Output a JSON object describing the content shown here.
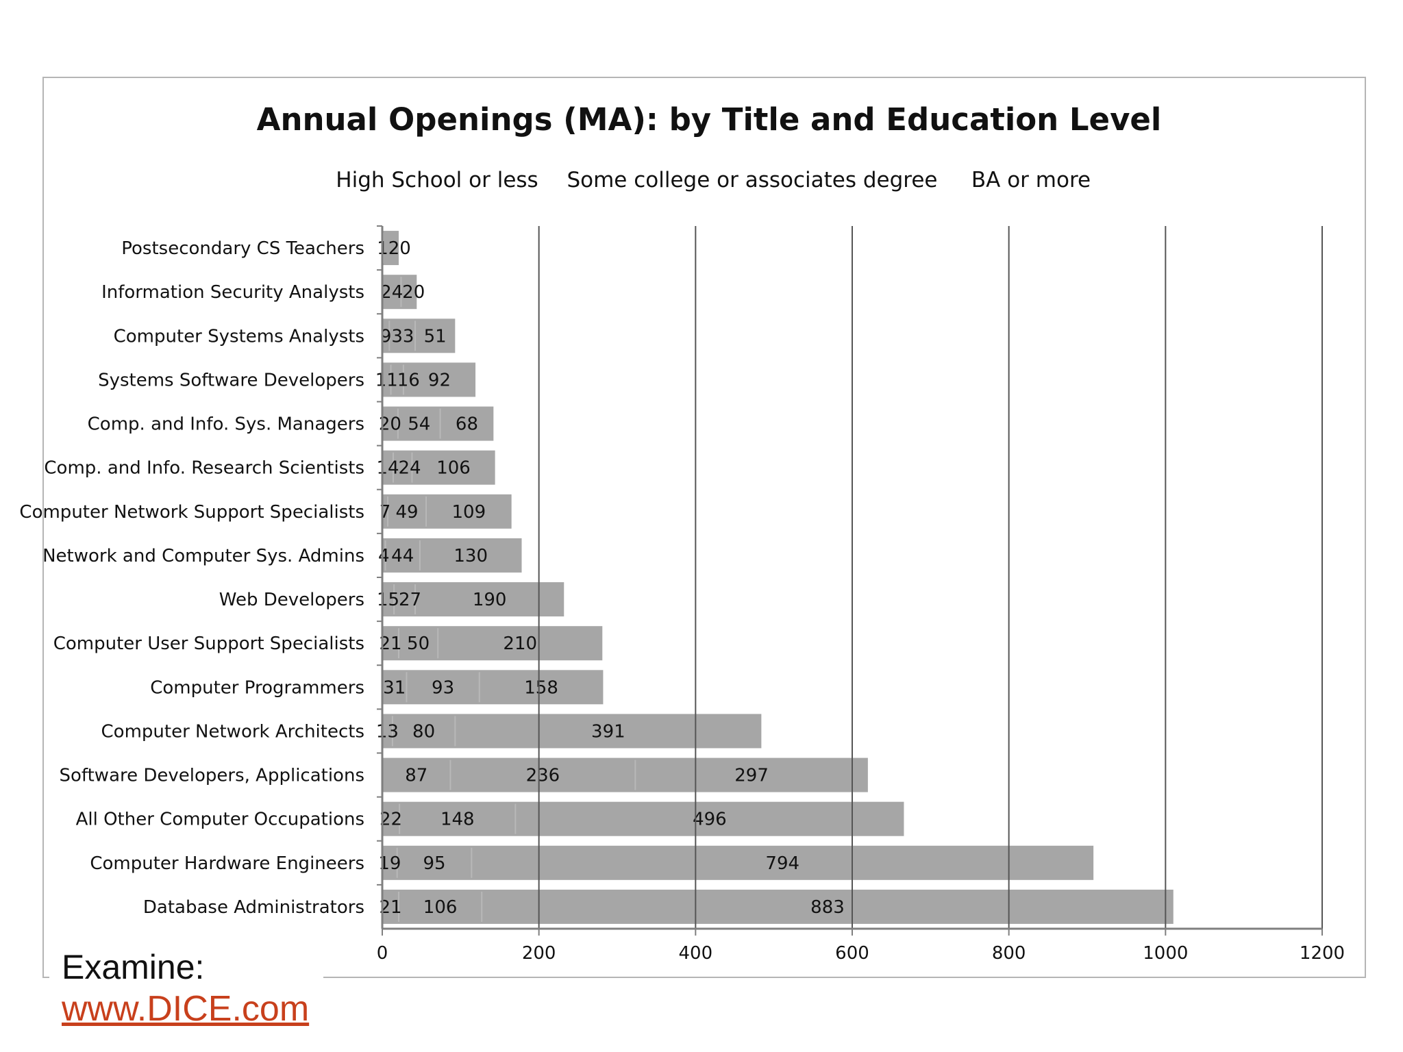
{
  "chart_data": {
    "type": "bar",
    "orientation": "horizontal",
    "stacked": true,
    "title": "Annual Openings (MA): by Title and Education Level",
    "legend_position": "top",
    "series_names": [
      "High School or less",
      "Some college or associates degree",
      "BA or more"
    ],
    "xlim": [
      0,
      1200
    ],
    "xticks": [
      "0",
      "200",
      "400",
      "600",
      "800",
      "1000",
      "1200"
    ],
    "xtick_values": [
      0,
      200,
      400,
      600,
      800,
      1000,
      1200
    ],
    "grid": true,
    "bars": [
      {
        "label": "Postsecondary CS Teachers",
        "values": [
          1,
          20
        ],
        "labels": [
          "1",
          "20"
        ]
      },
      {
        "label": "Information Security Analysts",
        "values": [
          24,
          20
        ],
        "labels": [
          "24",
          "20"
        ]
      },
      {
        "label": "Computer Systems Analysts",
        "values": [
          9,
          33,
          51
        ],
        "labels": [
          "9",
          "33",
          "51"
        ]
      },
      {
        "label": "Systems Software Developers",
        "values": [
          11,
          16,
          92
        ],
        "labels": [
          "11",
          "16",
          "92"
        ]
      },
      {
        "label": "Comp. and Info. Sys. Managers",
        "values": [
          20,
          54,
          68
        ],
        "labels": [
          "20",
          "54",
          "68"
        ]
      },
      {
        "label": "Comp. and Info. Research Scientists",
        "values": [
          14,
          24,
          106
        ],
        "labels": [
          "14",
          "24",
          "106"
        ]
      },
      {
        "label": "Computer Network Support Specialists",
        "values": [
          7,
          49,
          109
        ],
        "labels": [
          "7",
          "49",
          "109"
        ]
      },
      {
        "label": "Network and Computer Sys. Admins",
        "values": [
          4,
          44,
          130
        ],
        "labels": [
          "4",
          "44",
          "130"
        ]
      },
      {
        "label": "Web Developers",
        "values": [
          15,
          27,
          190
        ],
        "labels": [
          "15",
          "27",
          "190"
        ]
      },
      {
        "label": "Computer User Support Specialists",
        "values": [
          21,
          50,
          210
        ],
        "labels": [
          "21",
          "50",
          "210"
        ]
      },
      {
        "label": "Computer Programmers",
        "values": [
          31,
          93,
          158
        ],
        "labels": [
          "31",
          "93",
          "158"
        ]
      },
      {
        "label": "Computer Network Architects",
        "values": [
          13,
          80,
          391
        ],
        "labels": [
          "13",
          "80",
          "391"
        ]
      },
      {
        "label": "Software Developers, Applications",
        "values": [
          87,
          236,
          297
        ],
        "labels": [
          "87",
          "236",
          "297"
        ]
      },
      {
        "label": "All Other Computer Occupations",
        "values": [
          22,
          148,
          496
        ],
        "labels": [
          "22",
          "148",
          "496"
        ]
      },
      {
        "label": "Computer Hardware Engineers",
        "values": [
          19,
          95,
          794
        ],
        "labels": [
          "19",
          "95",
          "794"
        ]
      },
      {
        "label": "Database Administrators",
        "values": [
          21,
          106,
          883
        ],
        "labels": [
          "21",
          "106",
          "883"
        ]
      }
    ]
  },
  "colors": {
    "bar": "#a6a6a6",
    "gridline": "#555555",
    "axis": "#7f7f7f",
    "link": "#c8401c"
  },
  "footer": {
    "examine_label": "Examine:",
    "link_text": "www.DICE.com"
  }
}
